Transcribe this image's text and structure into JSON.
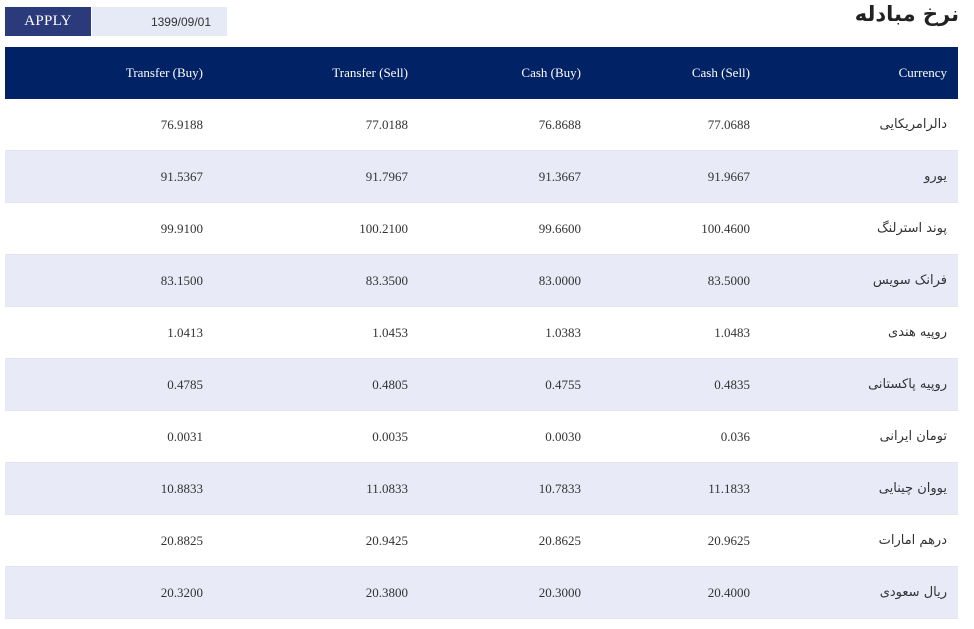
{
  "toolbar": {
    "apply_label": "APPLY",
    "date_value": "1399/09/01"
  },
  "page": {
    "title": "نرخ مبادله"
  },
  "table": {
    "headers": {
      "transfer_buy": "Transfer (Buy)",
      "transfer_sell": "Transfer (Sell)",
      "cash_buy": "Cash (Buy)",
      "cash_sell": "Cash (Sell)",
      "currency": "Currency"
    },
    "rows": [
      {
        "currency": "دالرامریکایی",
        "cash_sell": "77.0688",
        "cash_buy": "76.8688",
        "transfer_sell": "77.0188",
        "transfer_buy": "76.9188"
      },
      {
        "currency": "یورو",
        "cash_sell": "91.9667",
        "cash_buy": "91.3667",
        "transfer_sell": "91.7967",
        "transfer_buy": "91.5367"
      },
      {
        "currency": "پوند استرلنگ",
        "cash_sell": "100.4600",
        "cash_buy": "99.6600",
        "transfer_sell": "100.2100",
        "transfer_buy": "99.9100"
      },
      {
        "currency": "فرانک سویس",
        "cash_sell": "83.5000",
        "cash_buy": "83.0000",
        "transfer_sell": "83.3500",
        "transfer_buy": "83.1500"
      },
      {
        "currency": "روپیه هندی",
        "cash_sell": "1.0483",
        "cash_buy": "1.0383",
        "transfer_sell": "1.0453",
        "transfer_buy": "1.0413"
      },
      {
        "currency": "روپیه پاکستانی",
        "cash_sell": "0.4835",
        "cash_buy": "0.4755",
        "transfer_sell": "0.4805",
        "transfer_buy": "0.4785"
      },
      {
        "currency": "تومان ایرانی",
        "cash_sell": "0.036",
        "cash_buy": "0.0030",
        "transfer_sell": "0.0035",
        "transfer_buy": "0.0031"
      },
      {
        "currency": "یووان چینایی",
        "cash_sell": "11.1833",
        "cash_buy": "10.7833",
        "transfer_sell": "11.0833",
        "transfer_buy": "10.8833"
      },
      {
        "currency": "درهم امارات",
        "cash_sell": "20.9625",
        "cash_buy": "20.8625",
        "transfer_sell": "20.9425",
        "transfer_buy": "20.8825"
      },
      {
        "currency": "ریال سعودی",
        "cash_sell": "20.4000",
        "cash_buy": "20.3000",
        "transfer_sell": "20.3800",
        "transfer_buy": "20.3200"
      }
    ]
  }
}
